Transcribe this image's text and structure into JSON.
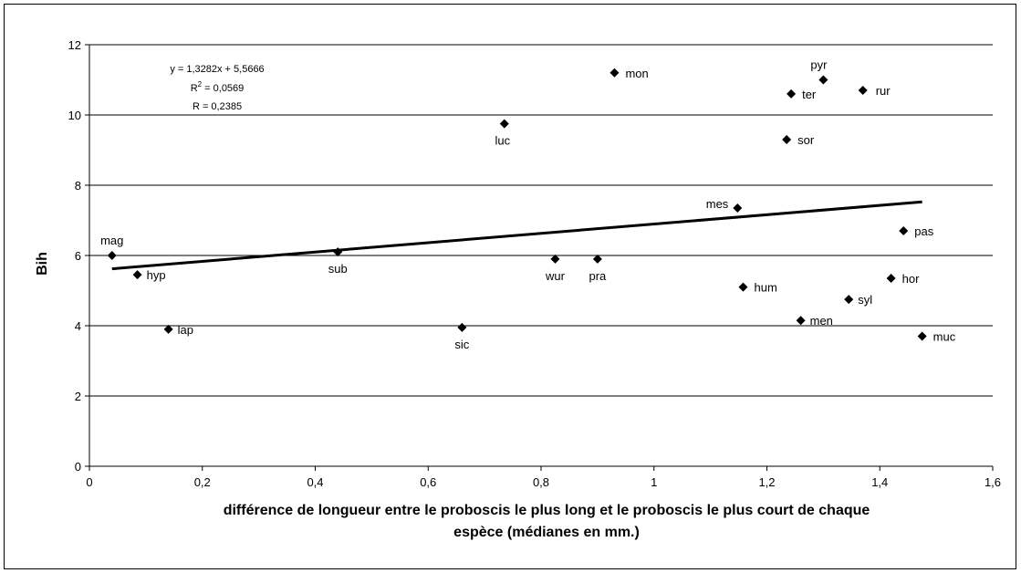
{
  "chart_data": {
    "type": "scatter",
    "xlabel_lines": [
      "différence de longueur entre le proboscis le plus long et le proboscis le plus court de chaque",
      "espèce (médianes en mm.)"
    ],
    "ylabel": "Bih",
    "xlim": [
      0,
      1.6
    ],
    "ylim": [
      0,
      12
    ],
    "x_ticks": [
      0,
      0.2,
      0.4,
      0.6,
      0.8,
      1.0,
      1.2,
      1.4,
      1.6
    ],
    "x_tick_labels": [
      "0",
      "0,2",
      "0,4",
      "0,6",
      "0,8",
      "1",
      "1,2",
      "1,4",
      "1,6"
    ],
    "y_ticks": [
      0,
      2,
      4,
      6,
      8,
      10,
      12
    ],
    "y_tick_labels": [
      "0",
      "2",
      "4",
      "6",
      "8",
      "10",
      "12"
    ],
    "grid": "horizontal",
    "marker_color": "#000000",
    "points": [
      {
        "label": "mag",
        "x": 0.04,
        "y": 6.0
      },
      {
        "label": "hyp",
        "x": 0.085,
        "y": 5.45
      },
      {
        "label": "lap",
        "x": 0.14,
        "y": 3.9
      },
      {
        "label": "sub",
        "x": 0.44,
        "y": 6.1
      },
      {
        "label": "sic",
        "x": 0.66,
        "y": 3.95
      },
      {
        "label": "luc",
        "x": 0.735,
        "y": 9.75
      },
      {
        "label": "wur",
        "x": 0.825,
        "y": 5.9
      },
      {
        "label": "pra",
        "x": 0.9,
        "y": 5.9
      },
      {
        "label": "mon",
        "x": 0.93,
        "y": 11.2
      },
      {
        "label": "mes",
        "x": 1.148,
        "y": 7.35
      },
      {
        "label": "hum",
        "x": 1.158,
        "y": 5.1
      },
      {
        "label": "sor",
        "x": 1.235,
        "y": 9.3
      },
      {
        "label": "ter",
        "x": 1.243,
        "y": 10.6
      },
      {
        "label": "men",
        "x": 1.26,
        "y": 4.15
      },
      {
        "label": "pyr",
        "x": 1.3,
        "y": 11.0
      },
      {
        "label": "syl",
        "x": 1.345,
        "y": 4.75
      },
      {
        "label": "rur",
        "x": 1.37,
        "y": 10.7
      },
      {
        "label": "hor",
        "x": 1.42,
        "y": 5.35
      },
      {
        "label": "pas",
        "x": 1.442,
        "y": 6.7
      },
      {
        "label": "muc",
        "x": 1.475,
        "y": 3.7
      }
    ],
    "trendline": {
      "slope": 1.3282,
      "intercept": 5.5666,
      "x_range": [
        0.04,
        1.475
      ]
    },
    "annotations": {
      "equation": "y = 1,3282x + 5,5666",
      "r2_prefix": "R",
      "r2_sup": "2",
      "r2_value": " = 0,0569",
      "r": "R = 0,2385"
    }
  }
}
